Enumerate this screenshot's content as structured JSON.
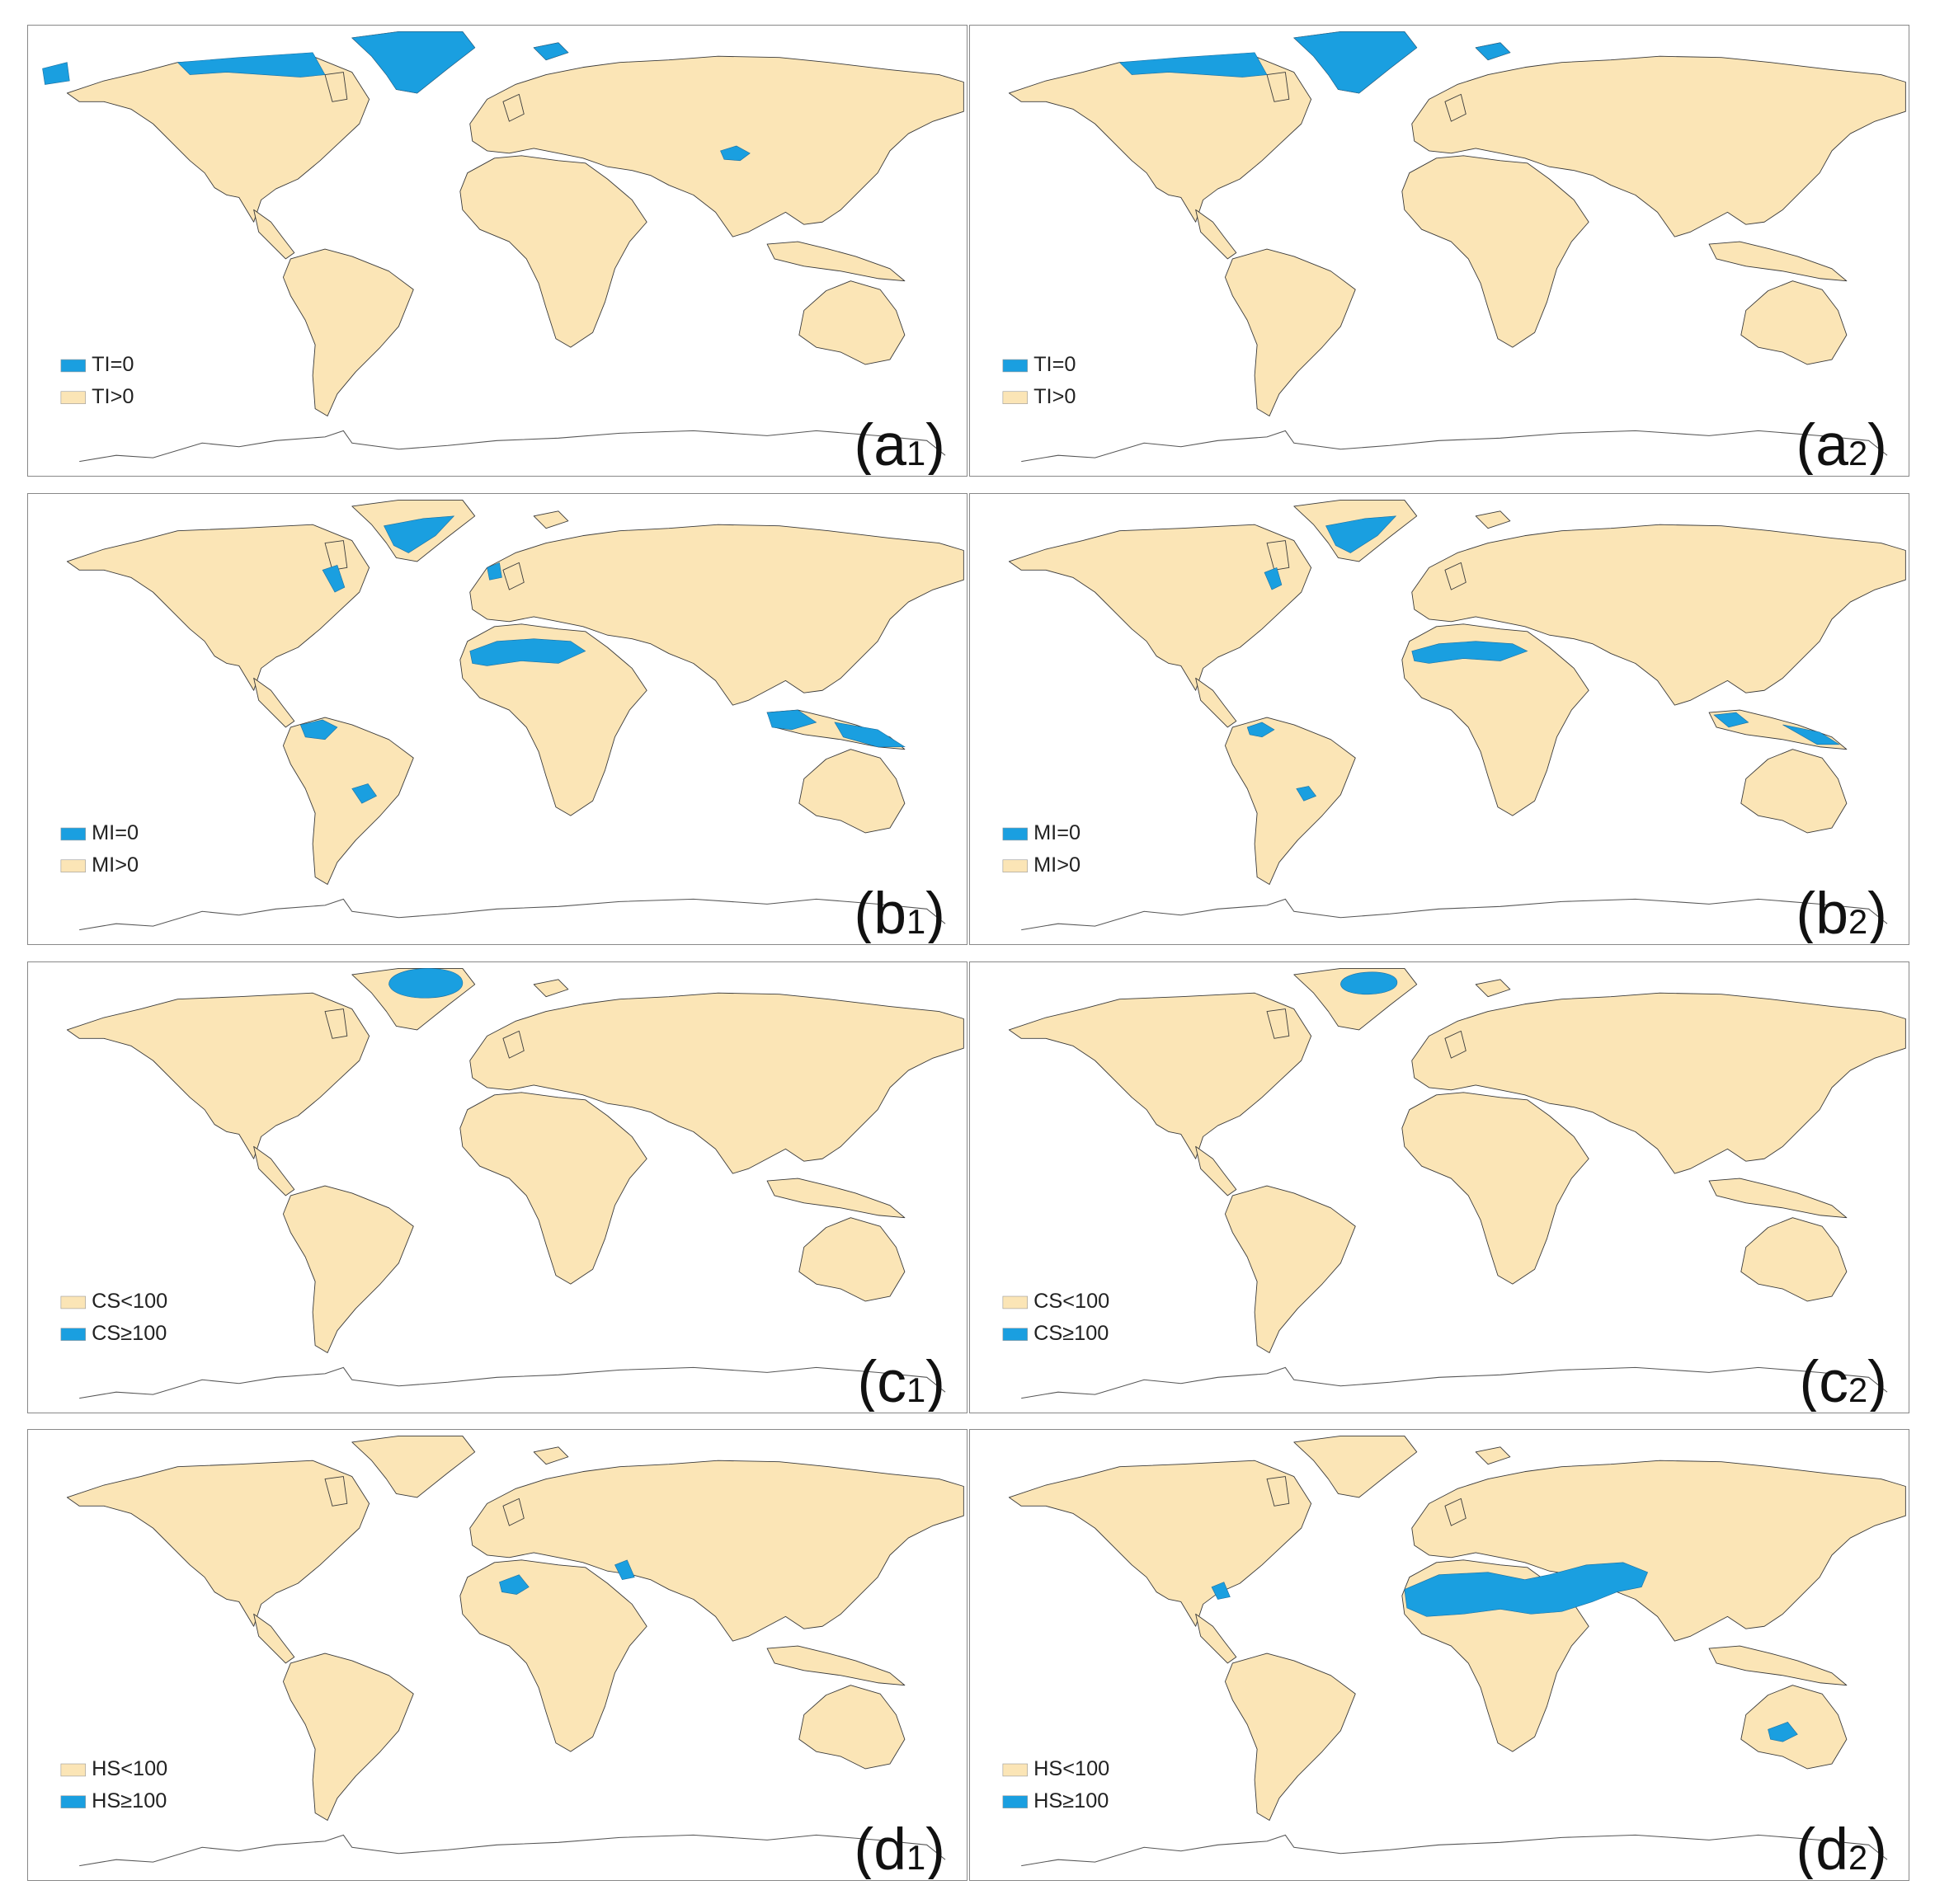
{
  "panels": [
    {
      "label": "(a",
      "label_sub": "1",
      "label_close": ")",
      "legend": [
        {
          "text": "TI=0",
          "color": "#1a9fe0"
        },
        {
          "text": "TI>0",
          "color": "#fbe5b6"
        }
      ]
    },
    {
      "label": "(a",
      "label_sub": "2",
      "label_close": ")",
      "legend": [
        {
          "text": "TI=0",
          "color": "#1a9fe0"
        },
        {
          "text": "TI>0",
          "color": "#fbe5b6"
        }
      ]
    },
    {
      "label": "(b",
      "label_sub": "1",
      "label_close": ")",
      "legend": [
        {
          "text": "MI=0",
          "color": "#1a9fe0"
        },
        {
          "text": "MI>0",
          "color": "#fbe5b6"
        }
      ]
    },
    {
      "label": "(b",
      "label_sub": "2",
      "label_close": ")",
      "legend": [
        {
          "text": "MI=0",
          "color": "#1a9fe0"
        },
        {
          "text": "MI>0",
          "color": "#fbe5b6"
        }
      ]
    },
    {
      "label": "(c",
      "label_sub": "1",
      "label_close": ")",
      "legend": [
        {
          "text": "CS<100",
          "color": "#fbe5b6"
        },
        {
          "text": "CS≥100",
          "color": "#1a9fe0"
        }
      ]
    },
    {
      "label": "(c",
      "label_sub": "2",
      "label_close": ")",
      "legend": [
        {
          "text": "CS<100",
          "color": "#fbe5b6"
        },
        {
          "text": "CS≥100",
          "color": "#1a9fe0"
        }
      ]
    },
    {
      "label": "(d",
      "label_sub": "1",
      "label_close": ")",
      "legend": [
        {
          "text": "HS<100",
          "color": "#fbe5b6"
        },
        {
          "text": "HS≥100",
          "color": "#1a9fe0"
        }
      ]
    },
    {
      "label": "(d",
      "label_sub": "2",
      "label_close": ")",
      "legend": [
        {
          "text": "HS<100",
          "color": "#fbe5b6"
        },
        {
          "text": "HS≥100",
          "color": "#1a9fe0"
        }
      ]
    }
  ]
}
